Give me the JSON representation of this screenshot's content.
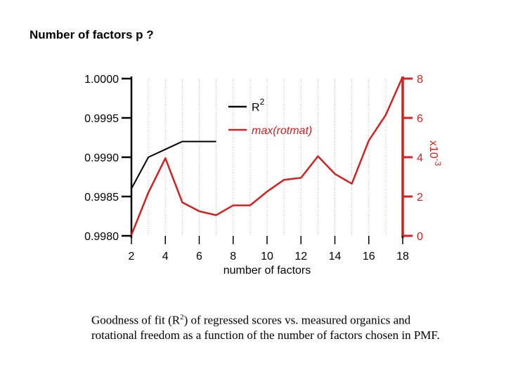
{
  "slide_title": "Number of factors p ?",
  "caption": {
    "before": "Goodness of fit (R",
    "superscript": "2",
    "after": ") of regressed scores vs. measured organics and rotational freedom as a function of the number of factors chosen in PMF."
  },
  "colors": {
    "r2": "#000000",
    "rotmat": "#d42020",
    "grid": "#bbbbbb"
  },
  "chart_data": {
    "type": "line",
    "xlabel": "number of factors",
    "x_ticks": [
      "2",
      "4",
      "6",
      "8",
      "10",
      "12",
      "14",
      "16",
      "18"
    ],
    "xlim": [
      2,
      18
    ],
    "left_axis": {
      "ylim": [
        0.998,
        1.0
      ],
      "tick_values": [
        0.998,
        0.9985,
        0.999,
        0.9995,
        1.0
      ],
      "tick_labels": [
        "0.9980",
        "0.9985",
        "0.9990",
        "0.9995",
        "1.0000"
      ]
    },
    "right_axis": {
      "ylim": [
        0,
        8
      ],
      "tick_values": [
        0,
        2,
        4,
        6,
        8
      ],
      "tick_labels": [
        "0",
        "2",
        "4",
        "6",
        "8"
      ],
      "scale_label": "x10",
      "scale_exponent": "-3"
    },
    "grid": "vertical dotted",
    "legend_placement": "top-center",
    "series": [
      {
        "name": "R",
        "name_superscript": "2",
        "axis": "left",
        "x": [
          2,
          3,
          4,
          5,
          6,
          7
        ],
        "y": [
          0.9986,
          0.999,
          0.9991,
          0.9992,
          0.9992,
          0.9992
        ]
      },
      {
        "name": "max(rotmat)",
        "axis": "right",
        "x": [
          2,
          3,
          4,
          5,
          6,
          7,
          8,
          9,
          10,
          11,
          12,
          13,
          14,
          15,
          16,
          17,
          18
        ],
        "y": [
          0.05,
          2.2,
          3.95,
          1.7,
          1.25,
          1.05,
          1.55,
          1.55,
          2.25,
          2.85,
          2.95,
          4.05,
          3.15,
          2.65,
          4.85,
          6.15,
          8.1
        ]
      }
    ]
  }
}
